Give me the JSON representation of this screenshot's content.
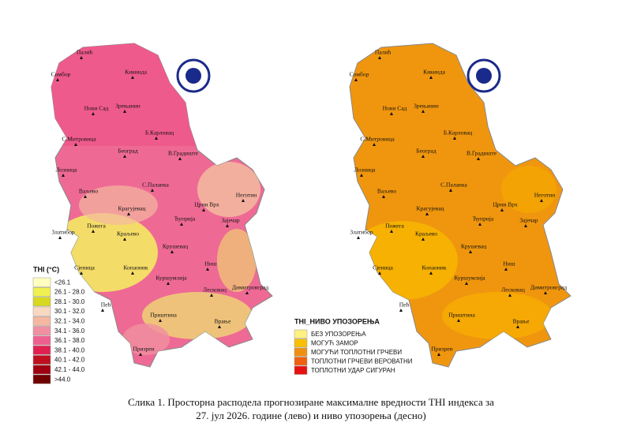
{
  "maps": [
    {
      "cities": [
        "Палић",
        "Сомбор",
        "Кикинда",
        "Нови Сад",
        "Зрењанин",
        "С.Митровица",
        "Б.Карловац",
        "Београд",
        "В.Градиште",
        "Лозница",
        "Ваљево",
        "С.Паланка",
        "Неготин",
        "Црни Врх",
        "Крагујевац",
        "Ћуприја",
        "Зајечар",
        "Златибор",
        "Пожега",
        "Краљево",
        "Крушевац",
        "Сјеница",
        "Копаоник",
        "Ниш",
        "Куршумлија",
        "Лесковац",
        "Димитровград",
        "Пећ",
        "Приштина",
        "Врање",
        "Призрен"
      ],
      "legend": {
        "title": "THI (°C)",
        "items": [
          {
            "label": "<26.1",
            "color": "#ffffc0"
          },
          {
            "label": "26.1 - 28.0",
            "color": "#f0f050"
          },
          {
            "label": "28.1 - 30.0",
            "color": "#d8d820"
          },
          {
            "label": "30.1 - 32.0",
            "color": "#f8d8c0"
          },
          {
            "label": "32.1 - 34.0",
            "color": "#f4b8a0"
          },
          {
            "label": "34.1 - 36.0",
            "color": "#f090a0"
          },
          {
            "label": "36.1 - 38.0",
            "color": "#ee6090"
          },
          {
            "label": "38.1 - 40.0",
            "color": "#e02050"
          },
          {
            "label": "40.1 - 42.0",
            "color": "#c01020"
          },
          {
            "label": "42.1 - 44.0",
            "color": "#a00010"
          },
          {
            "label": ">44.0",
            "color": "#700000"
          }
        ]
      }
    },
    {
      "cities": [
        "Палић",
        "Сомбор",
        "Кикинда",
        "Нови Сад",
        "Зрењанин",
        "С.Митровица",
        "Б.Карловац",
        "Београд",
        "В.Градиште",
        "Лозница",
        "Ваљево",
        "С.Паланка",
        "Неготин",
        "Црни Врх",
        "Крагујевац",
        "Ћуприја",
        "Зајечар",
        "Златибор",
        "Пожега",
        "Краљево",
        "Крушевац",
        "Сјеница",
        "Копаоник",
        "Ниш",
        "Куршумлија",
        "Лесковац",
        "Димитровград",
        "Пећ",
        "Приштина",
        "Врање",
        "Призрен"
      ],
      "legend": {
        "title": "THI_НИВО УПОЗОРЕЊА",
        "items": [
          {
            "label": "БЕЗ УПОЗОРЕЊА",
            "color": "#fff080"
          },
          {
            "label": "МОГУЋ ЗАМОР",
            "color": "#f8c000"
          },
          {
            "label": "МОГУЋИ ТОПЛОТНИ ГРЧЕВИ",
            "color": "#f09010"
          },
          {
            "label": "ТОПЛОТНИ ГРЧЕВИ ВЕРОВАТНИ",
            "color": "#f06010"
          },
          {
            "label": "ТОПЛОТНИ УДАР СИГУРАН",
            "color": "#e81010"
          }
        ]
      }
    }
  ],
  "caption": [
    "Слика 1. Просторна расподела прогнозиране максималне вредности THI индекса за",
    "27. јул 2026. године (лево) и ниво упозорења (десно)"
  ]
}
